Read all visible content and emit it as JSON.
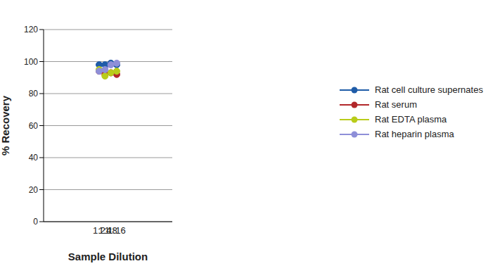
{
  "chart_data": {
    "type": "line",
    "x_label": "Sample Dilution",
    "y_label": "% Recovery",
    "categories": [
      "1:2",
      "1:4",
      "1:8",
      "1:16"
    ],
    "series": [
      {
        "name": "Rat cell culture supernates",
        "color": "#1f5ca8",
        "values": [
          98,
          98,
          99,
          98
        ]
      },
      {
        "name": "Rat serum",
        "color": "#b2282b",
        "values": [
          94,
          92,
          93,
          92
        ]
      },
      {
        "name": "Rat EDTA plasma",
        "color": "#b9cc1a",
        "values": [
          95,
          91,
          93,
          94
        ]
      },
      {
        "name": "Rat heparin plasma",
        "color": "#8e8fd8",
        "values": [
          94,
          95,
          98,
          99
        ]
      }
    ],
    "ylim": [
      0,
      120
    ],
    "yticks": [
      0,
      20,
      40,
      60,
      80,
      100,
      120
    ],
    "grid": true,
    "legend": "right",
    "marker": "circle",
    "line_style": "solid"
  }
}
